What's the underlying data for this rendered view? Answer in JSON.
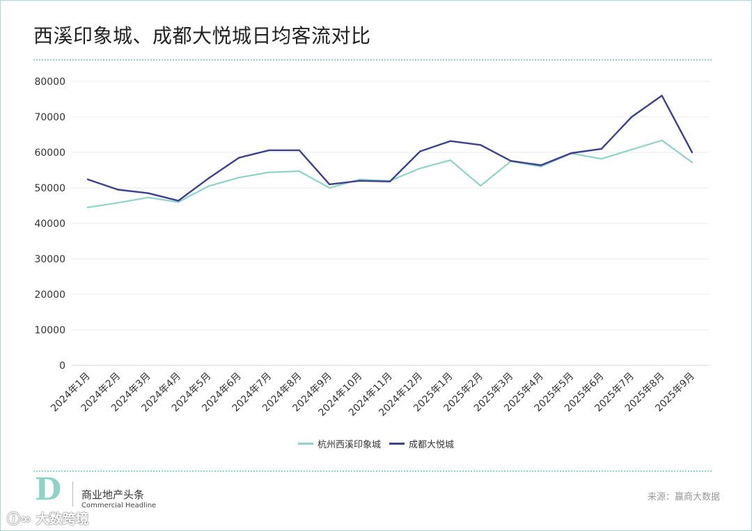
{
  "title": "西溪印象城、成都大悦城日均客流对比",
  "source": "来源：赢商大数据",
  "brand": {
    "logo": "D",
    "name_cn": "商业地产头条",
    "name_en": "Commercial Headline"
  },
  "watermark": "大数跨境",
  "colors": {
    "series1": "#8fd3c8",
    "series2": "#3d3f8f",
    "divider": "#8fd3c8",
    "grid": "#e8e8e8"
  },
  "chart_data": {
    "type": "line",
    "title": "西溪印象城、成都大悦城日均客流对比",
    "categories": [
      "2024年1月",
      "2024年2月",
      "2024年3月",
      "2024年4月",
      "2024年5月",
      "2024年6月",
      "2024年7月",
      "2024年8月",
      "2024年9月",
      "2024年10月",
      "2024年11月",
      "2024年12月",
      "2025年1月",
      "2025年2月",
      "2025年3月",
      "2025年4月",
      "2025年5月",
      "2025年6月",
      "2025年7月",
      "2025年8月",
      "2025年9月"
    ],
    "yticks": [
      "0",
      "10000",
      "20000",
      "30000",
      "40000",
      "50000",
      "60000",
      "70000",
      "80000"
    ],
    "ylim": [
      0,
      80000
    ],
    "grid": true,
    "legend_position": "bottom",
    "series": [
      {
        "name": "杭州西溪印象城",
        "color": "#8fd3c8",
        "values": [
          44500,
          45800,
          47300,
          46000,
          50500,
          52900,
          54400,
          54700,
          50000,
          52400,
          52000,
          55500,
          57800,
          50600,
          57500,
          56000,
          59700,
          58200,
          60800,
          63400,
          57200
        ]
      },
      {
        "name": "成都大悦城",
        "color": "#3d3f8f",
        "values": [
          52400,
          49500,
          48500,
          46400,
          52700,
          58500,
          60600,
          60600,
          51000,
          52000,
          51800,
          60300,
          63200,
          62100,
          57600,
          56400,
          59800,
          61000,
          70000,
          76000,
          60000
        ]
      }
    ]
  }
}
